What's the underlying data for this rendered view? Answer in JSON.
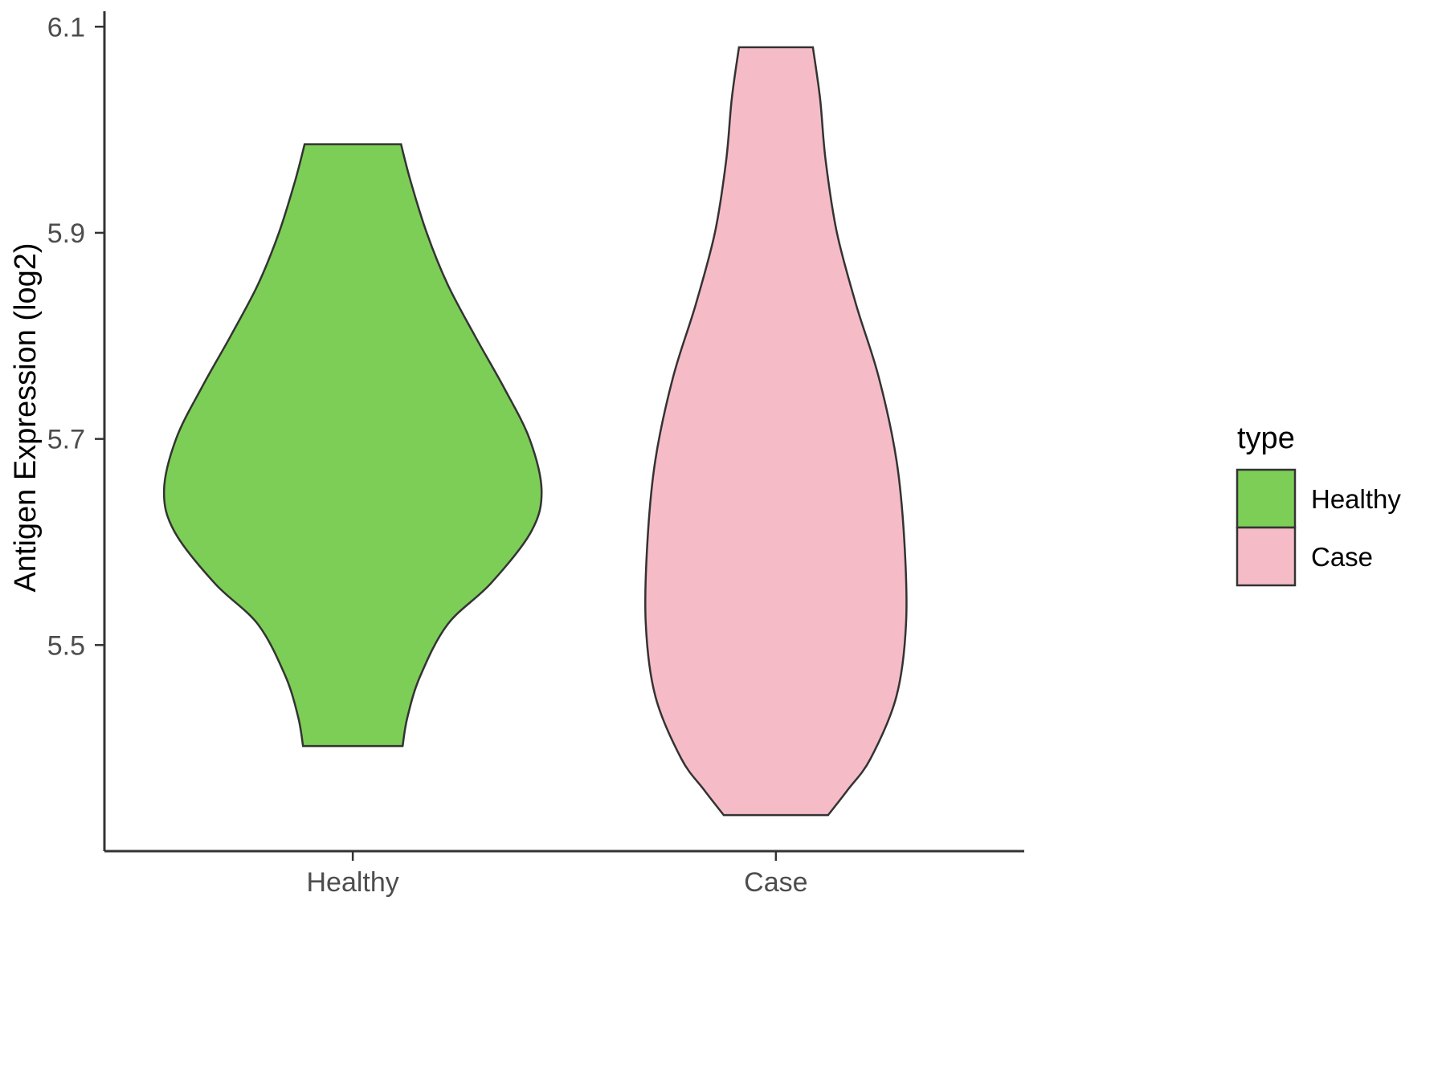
{
  "chart_data": {
    "type": "violin",
    "title": "",
    "xlabel": "",
    "ylabel": "Antigen Expression (log2)",
    "categories": [
      "Healthy",
      "Case"
    ],
    "y_ticks": [
      6.1,
      5.9,
      5.7,
      5.5
    ],
    "ylim": [
      5.3,
      6.115
    ],
    "grid": false,
    "legend": {
      "title": "type",
      "position": "right",
      "entries": [
        "Healthy",
        "Case"
      ]
    },
    "stroke_color": "#333333",
    "series": [
      {
        "name": "Healthy",
        "color": "#7DCE56",
        "profile": [
          {
            "value": 5.986,
            "halfwidth": 60
          },
          {
            "value": 5.95,
            "halfwidth": 72
          },
          {
            "value": 5.9,
            "halfwidth": 92
          },
          {
            "value": 5.85,
            "halfwidth": 118
          },
          {
            "value": 5.8,
            "halfwidth": 152
          },
          {
            "value": 5.75,
            "halfwidth": 188
          },
          {
            "value": 5.7,
            "halfwidth": 220
          },
          {
            "value": 5.65,
            "halfwidth": 235
          },
          {
            "value": 5.61,
            "halfwidth": 222
          },
          {
            "value": 5.56,
            "halfwidth": 172
          },
          {
            "value": 5.52,
            "halfwidth": 118
          },
          {
            "value": 5.47,
            "halfwidth": 84
          },
          {
            "value": 5.43,
            "halfwidth": 68
          },
          {
            "value": 5.402,
            "halfwidth": 62
          }
        ]
      },
      {
        "name": "Case",
        "color": "#F5BCC8",
        "profile": [
          {
            "value": 6.08,
            "halfwidth": 46
          },
          {
            "value": 6.03,
            "halfwidth": 55
          },
          {
            "value": 5.97,
            "halfwidth": 62
          },
          {
            "value": 5.9,
            "halfwidth": 76
          },
          {
            "value": 5.83,
            "halfwidth": 100
          },
          {
            "value": 5.76,
            "halfwidth": 128
          },
          {
            "value": 5.68,
            "halfwidth": 150
          },
          {
            "value": 5.6,
            "halfwidth": 160
          },
          {
            "value": 5.52,
            "halfwidth": 162
          },
          {
            "value": 5.45,
            "halfwidth": 150
          },
          {
            "value": 5.39,
            "halfwidth": 118
          },
          {
            "value": 5.36,
            "halfwidth": 90
          },
          {
            "value": 5.335,
            "halfwidth": 65
          }
        ]
      }
    ]
  }
}
